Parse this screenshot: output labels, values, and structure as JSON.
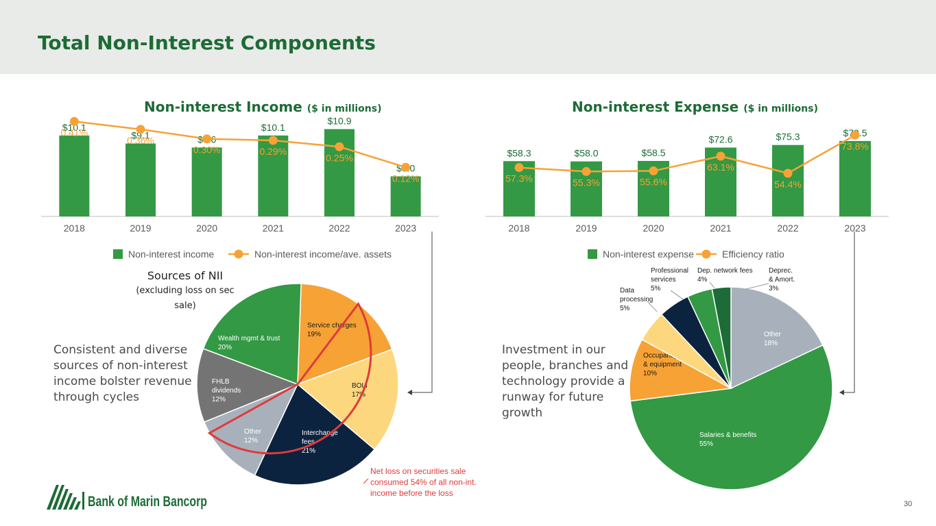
{
  "page": {
    "title": "Total Non-Interest Components",
    "page_number": "30"
  },
  "colors": {
    "green": "#339944",
    "orange": "#f7a235",
    "navy": "#0c2340",
    "gray": "#747474",
    "lightgray": "#a8b1bb",
    "lightyellow": "#fdd77e",
    "title_green": "#1d6b36",
    "red": "#e03a3a"
  },
  "left_chart": {
    "title": "Non-interest Income",
    "unit": "($ in millions)"
  },
  "right_chart": {
    "title": "Non-interest Expense",
    "unit": "($ in millions)"
  },
  "left_pie": {
    "title": "Sources of NII",
    "subtitle": "(excluding loss on sec sale)"
  },
  "left_text": {
    "line1": "Consistent and diverse",
    "line2": "sources of non-interest",
    "line3": "income bolster revenue",
    "line4": "through cycles"
  },
  "right_text": {
    "line1": "Investment in our",
    "line2": "people, branches and",
    "line3": "technology provide a",
    "line4": "runway for future",
    "line5": "growth"
  },
  "logo": {
    "text": "Bank of Marin Bancorp"
  },
  "chart_data": [
    {
      "type": "bar",
      "title": "Non-interest Income ($ in millions)",
      "categories": [
        "2018",
        "2019",
        "2020",
        "2021",
        "2022",
        "2023"
      ],
      "series": [
        {
          "name": "Non-interest income",
          "values": [
            10.1,
            9.1,
            8.6,
            10.1,
            10.9,
            5.0
          ],
          "labels": [
            "$10.1",
            "$9.1",
            "$8.6",
            "$10.1",
            "$10.9",
            "$5.0"
          ],
          "color": "#339944"
        },
        {
          "name": "Non-interest income/ave. assets",
          "type": "line",
          "values": [
            0.41,
            0.36,
            0.3,
            0.29,
            0.25,
            0.12
          ],
          "labels": [
            "0.41%",
            "0.36%",
            "0.30%",
            "0.29%",
            "0.25%",
            "0.12%"
          ],
          "color": "#f7a235"
        }
      ],
      "legend": "bottom"
    },
    {
      "type": "bar",
      "title": "Non-interest Expense ($ in millions)",
      "categories": [
        "2018",
        "2019",
        "2020",
        "2021",
        "2022",
        "2023"
      ],
      "series": [
        {
          "name": "Non-interest expense",
          "values": [
            58.3,
            58.0,
            58.5,
            72.6,
            75.3,
            79.5
          ],
          "labels": [
            "$58.3",
            "$58.0",
            "$58.5",
            "$72.6",
            "$75.3",
            "$79.5"
          ],
          "color": "#339944"
        },
        {
          "name": "Efficiency ratio",
          "type": "line",
          "values": [
            57.3,
            55.3,
            55.6,
            63.1,
            54.4,
            73.8
          ],
          "labels": [
            "57.3%",
            "55.3%",
            "55.6%",
            "63.1%",
            "54.4%",
            "73.8%"
          ],
          "color": "#f7a235"
        }
      ],
      "legend": "bottom"
    },
    {
      "type": "pie",
      "title": "Sources of NII (excluding loss on sec sale)",
      "slices": [
        {
          "label": [
            "Service charges",
            "19%"
          ],
          "value": 19,
          "color": "#f7a235"
        },
        {
          "label": [
            "BOLI",
            "17%"
          ],
          "value": 17,
          "color": "#fdd77e"
        },
        {
          "label": [
            "Interchange",
            "fees",
            "21%"
          ],
          "value": 21,
          "color": "#0c2340"
        },
        {
          "label": [
            "Other",
            "12%"
          ],
          "value": 12,
          "color": "#a8b1bb"
        },
        {
          "label": [
            "FHLB",
            "dividends",
            "12%"
          ],
          "value": 12,
          "color": "#747474"
        },
        {
          "label": [
            "Wealth mgmt & trust",
            "20%"
          ],
          "value": 20,
          "color": "#339944"
        }
      ],
      "annotation": [
        "Net loss on securities sale",
        "consumed 54% of all non-int.",
        "income before the loss"
      ]
    },
    {
      "type": "pie",
      "slices": [
        {
          "label": [
            "Other",
            "18%"
          ],
          "value": 18,
          "color": "#a8b1bb"
        },
        {
          "label": [
            "Salaries & benefits",
            "55%"
          ],
          "value": 55,
          "color": "#339944"
        },
        {
          "label": [
            "Occupancy",
            "& equipment",
            "10%"
          ],
          "value": 10,
          "color": "#f7a235"
        },
        {
          "label": [
            "Data",
            "processing",
            "5%"
          ],
          "value": 5,
          "color": "#fdd77e"
        },
        {
          "label": [
            "Professional",
            "services",
            "5%"
          ],
          "value": 5,
          "color": "#0c2340"
        },
        {
          "label": [
            "Dep. network fees",
            "4%"
          ],
          "value": 4,
          "color": "#339944"
        },
        {
          "label": [
            "Deprec.",
            "& Amort.",
            "3%"
          ],
          "value": 3,
          "color": "#1d6b36"
        }
      ]
    }
  ]
}
